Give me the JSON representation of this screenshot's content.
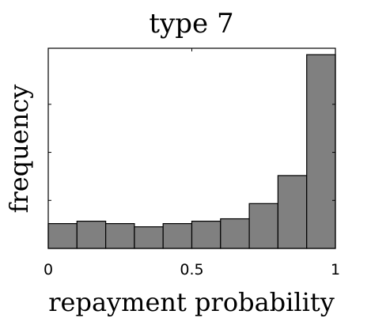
{
  "chart_data": {
    "type": "bar",
    "title": "type 7",
    "xlabel": "repayment probability",
    "ylabel": "frequency",
    "bin_edges": [
      0,
      0.1,
      0.2,
      0.3,
      0.4,
      0.5,
      0.6,
      0.7,
      0.8,
      0.9,
      1.0
    ],
    "values": [
      31,
      34,
      31,
      27,
      31,
      34,
      37,
      56,
      91,
      242
    ],
    "xlim": [
      0,
      1
    ],
    "ylim": [
      0,
      250
    ],
    "xticks": [
      0,
      0.5,
      1
    ],
    "xtick_labels": [
      "0",
      "0.5",
      "1"
    ],
    "yticks": [
      60,
      120,
      180
    ],
    "ytick_labels_visible": false,
    "grid": false,
    "bar_color": "#808080"
  }
}
